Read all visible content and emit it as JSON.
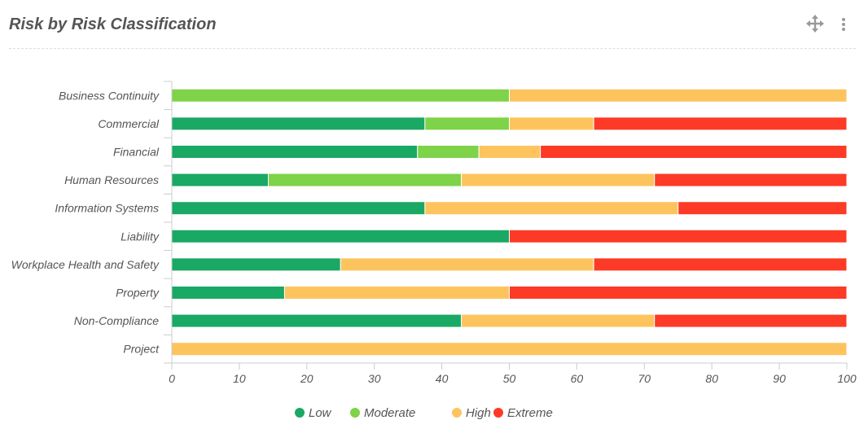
{
  "header": {
    "title": "Risk by Risk Classification",
    "move_icon": "move-arrows-icon",
    "menu_icon": "more-vertical-icon"
  },
  "chart_data": {
    "type": "bar",
    "orientation": "horizontal",
    "stacked": true,
    "title": "Risk by Risk Classification",
    "categories": [
      "Business Continuity",
      "Commercial",
      "Financial",
      "Human Resources",
      "Information Systems",
      "Liability",
      "Workplace Health and Safety",
      "Property",
      "Non-Compliance",
      "Project"
    ],
    "series": [
      {
        "name": "Low",
        "color": "#1aa865",
        "values": [
          0,
          37.5,
          36.4,
          14.3,
          37.5,
          50,
          25,
          16.7,
          42.9,
          0
        ]
      },
      {
        "name": "Moderate",
        "color": "#7ed348",
        "values": [
          50,
          12.5,
          9.1,
          28.6,
          0,
          0,
          0,
          0,
          0,
          0
        ]
      },
      {
        "name": "High",
        "color": "#fdc45e",
        "values": [
          50,
          12.5,
          9.1,
          28.6,
          37.5,
          0,
          37.5,
          33.3,
          28.6,
          100
        ]
      },
      {
        "name": "Extreme",
        "color": "#fd3a26",
        "values": [
          0,
          37.5,
          45.4,
          28.5,
          25,
          50,
          37.5,
          50,
          28.5,
          0
        ]
      }
    ],
    "xlim": [
      0,
      100
    ],
    "xticks": [
      0,
      10,
      20,
      30,
      40,
      50,
      60,
      70,
      80,
      90,
      100
    ],
    "grid": false,
    "legend": "bottom"
  }
}
